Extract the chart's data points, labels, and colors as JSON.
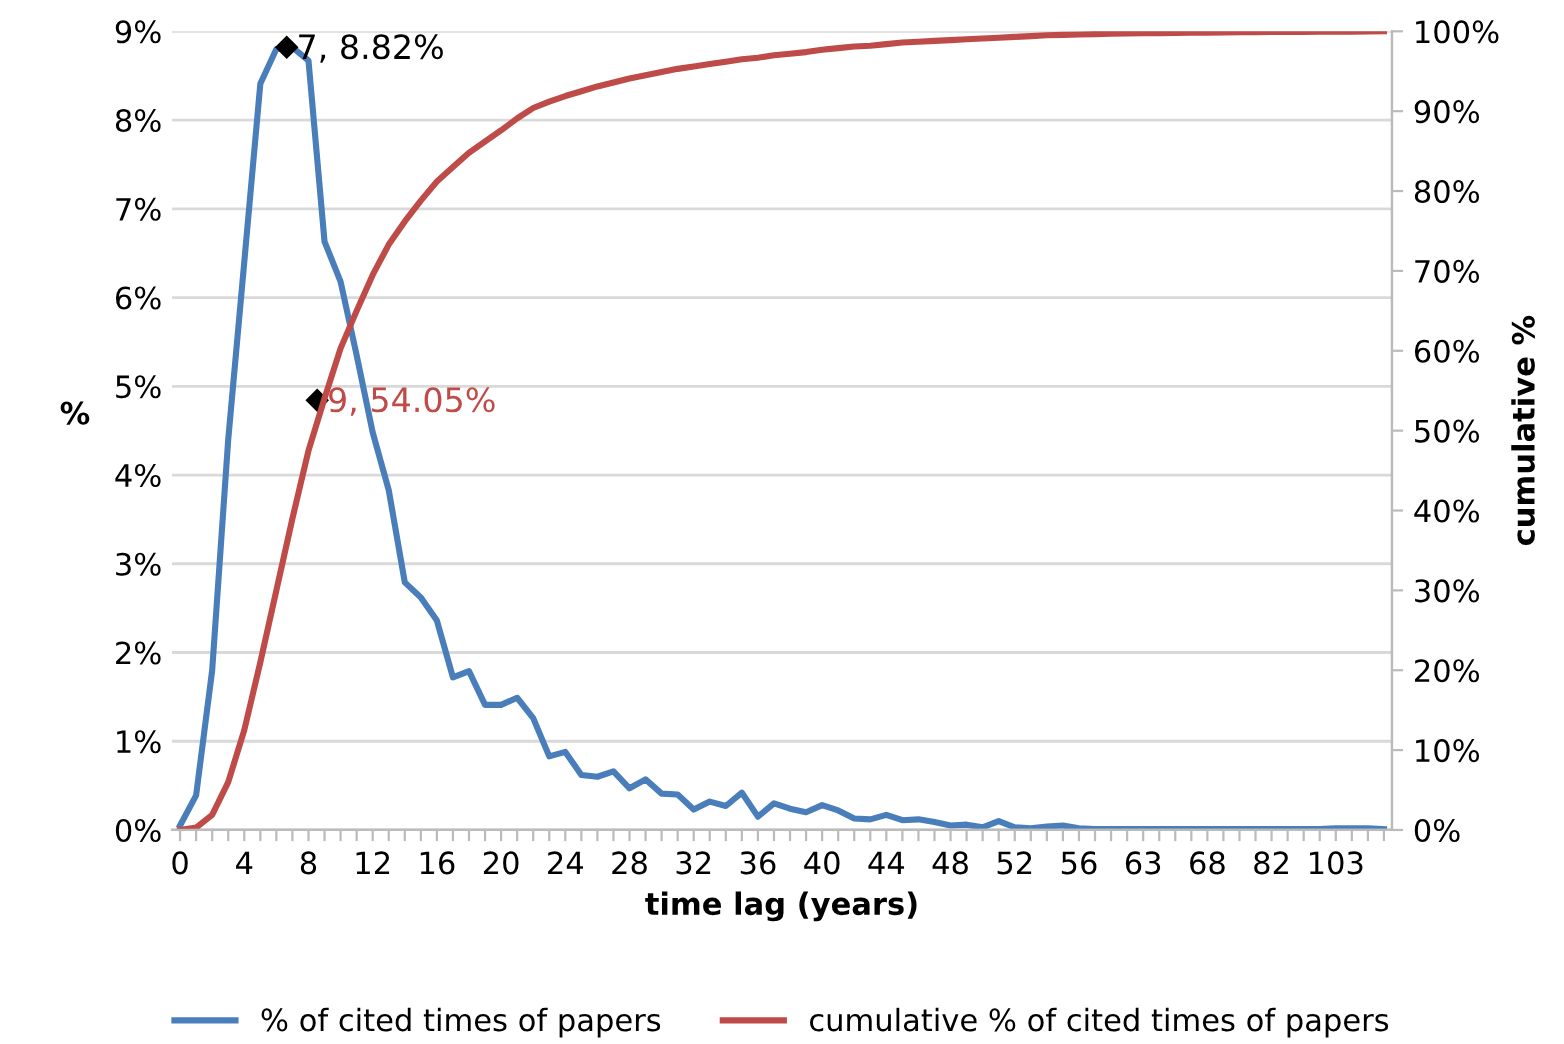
{
  "chart_data": {
    "type": "line",
    "xlabel": "time lag (years)",
    "ylabel": "%",
    "y2label": "cumulative %",
    "categories": [
      "0",
      null,
      null,
      null,
      "4",
      null,
      null,
      null,
      "8",
      null,
      null,
      null,
      "12",
      null,
      null,
      null,
      "16",
      null,
      null,
      null,
      "20",
      null,
      null,
      null,
      "24",
      null,
      null,
      null,
      "28",
      null,
      null,
      null,
      "32",
      null,
      null,
      null,
      "36",
      null,
      null,
      null,
      "40",
      null,
      null,
      null,
      "44",
      null,
      null,
      null,
      "48",
      null,
      null,
      null,
      "52",
      null,
      null,
      null,
      "56",
      null,
      null,
      null,
      "63",
      null,
      null,
      null,
      "68",
      null,
      null,
      null,
      "82",
      null,
      null,
      null,
      "103",
      null,
      null,
      null
    ],
    "series": [
      {
        "name": "% of cited times of papers",
        "color": "#4a7ebb",
        "values": [
          0.05,
          0.39,
          1.8,
          4.4,
          6.4,
          8.41,
          8.8,
          8.82,
          8.67,
          6.63,
          6.18,
          5.35,
          4.48,
          3.83,
          2.79,
          2.62,
          2.36,
          1.72,
          1.79,
          1.41,
          1.41,
          1.49,
          1.26,
          0.83,
          0.88,
          0.62,
          0.6,
          0.66,
          0.47,
          0.57,
          0.41,
          0.4,
          0.23,
          0.32,
          0.27,
          0.42,
          0.15,
          0.3,
          0.24,
          0.2,
          0.28,
          0.22,
          0.13,
          0.12,
          0.17,
          0.11,
          0.12,
          0.09,
          0.05,
          0.06,
          0.03,
          0.1,
          0.03,
          0.02,
          0.04,
          0.05,
          0.02,
          0.01,
          0.01,
          0.01,
          0.01,
          0.01,
          0.01,
          0.01,
          0.01,
          0.01,
          0.01,
          0.01,
          0.01,
          0.01,
          0.01,
          0.01,
          0.02,
          0.02,
          0.02,
          0.01
        ]
      },
      {
        "name": "cumulative % of cited times of papers",
        "color": "#be4b48",
        "axis": "y2",
        "values": [
          0,
          0.3,
          1.9,
          6,
          12.5,
          21,
          30,
          39,
          47.5,
          54.05,
          60.3,
          65,
          69.5,
          73.3,
          76.2,
          78.8,
          81.2,
          83,
          84.8,
          86.2,
          87.6,
          89.1,
          90.4,
          91.2,
          91.9,
          92.5,
          93.1,
          93.6,
          94.1,
          94.5,
          94.9,
          95.3,
          95.6,
          95.9,
          96.2,
          96.5,
          96.7,
          97,
          97.2,
          97.4,
          97.7,
          97.9,
          98.1,
          98.2,
          98.4,
          98.6,
          98.7,
          98.8,
          98.9,
          99,
          99.1,
          99.2,
          99.3,
          99.4,
          99.5,
          99.55,
          99.6,
          99.65,
          99.7,
          99.72,
          99.75,
          99.78,
          99.8,
          99.82,
          99.84,
          99.86,
          99.88,
          99.9,
          99.91,
          99.92,
          99.93,
          99.94,
          99.95,
          99.96,
          99.98,
          100
        ]
      }
    ],
    "ylim": [
      0,
      9
    ],
    "yticks": [
      {
        "value": 0,
        "label": "0%"
      },
      {
        "value": 1,
        "label": "1%"
      },
      {
        "value": 2,
        "label": "2%"
      },
      {
        "value": 3,
        "label": "3%"
      },
      {
        "value": 4,
        "label": "4%"
      },
      {
        "value": 5,
        "label": "5%"
      },
      {
        "value": 6,
        "label": "6%"
      },
      {
        "value": 7,
        "label": "7%"
      },
      {
        "value": 8,
        "label": "8%"
      },
      {
        "value": 9,
        "label": "9%"
      }
    ],
    "y2lim": [
      0,
      100
    ],
    "y2ticks": [
      {
        "value": 0,
        "label": "0%"
      },
      {
        "value": 10,
        "label": "10%"
      },
      {
        "value": 20,
        "label": "20%"
      },
      {
        "value": 30,
        "label": "30%"
      },
      {
        "value": 40,
        "label": "40%"
      },
      {
        "value": 50,
        "label": "50%"
      },
      {
        "value": 60,
        "label": "60%"
      },
      {
        "value": 70,
        "label": "70%"
      },
      {
        "value": 80,
        "label": "80%"
      },
      {
        "value": 90,
        "label": "90%"
      },
      {
        "value": 100,
        "label": "100%"
      }
    ],
    "annotations": [
      "7, 8.82%",
      "9, 54.05%"
    ],
    "grid": "y",
    "legend": "bottom",
    "marker": "none",
    "line_style": "solid"
  }
}
